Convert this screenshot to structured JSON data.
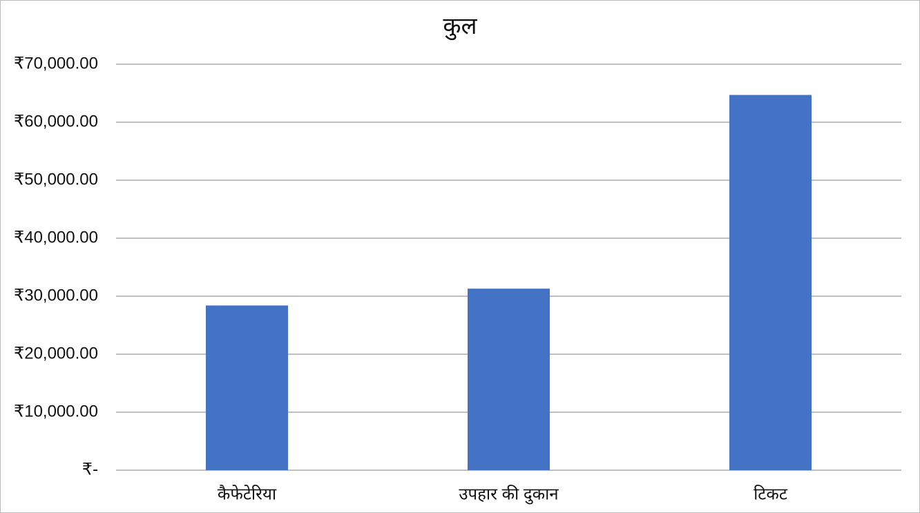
{
  "chart_data": {
    "type": "bar",
    "title": "कुल",
    "categories": [
      "कैफेटेरिया",
      "उपहार की दुकान",
      "टिकट"
    ],
    "values": [
      28400,
      31300,
      64700
    ],
    "color": "#4472c4",
    "ylim": [
      0,
      70000
    ],
    "yticks": [
      {
        "value": 0,
        "label": "₹-"
      },
      {
        "value": 10000,
        "label": "₹10,000.00"
      },
      {
        "value": 20000,
        "label": "₹20,000.00"
      },
      {
        "value": 30000,
        "label": "₹30,000.00"
      },
      {
        "value": 40000,
        "label": "₹40,000.00"
      },
      {
        "value": 50000,
        "label": "₹50,000.00"
      },
      {
        "value": 60000,
        "label": "₹60,000.00"
      },
      {
        "value": 70000,
        "label": "₹70,000.00"
      }
    ],
    "grid": true
  }
}
